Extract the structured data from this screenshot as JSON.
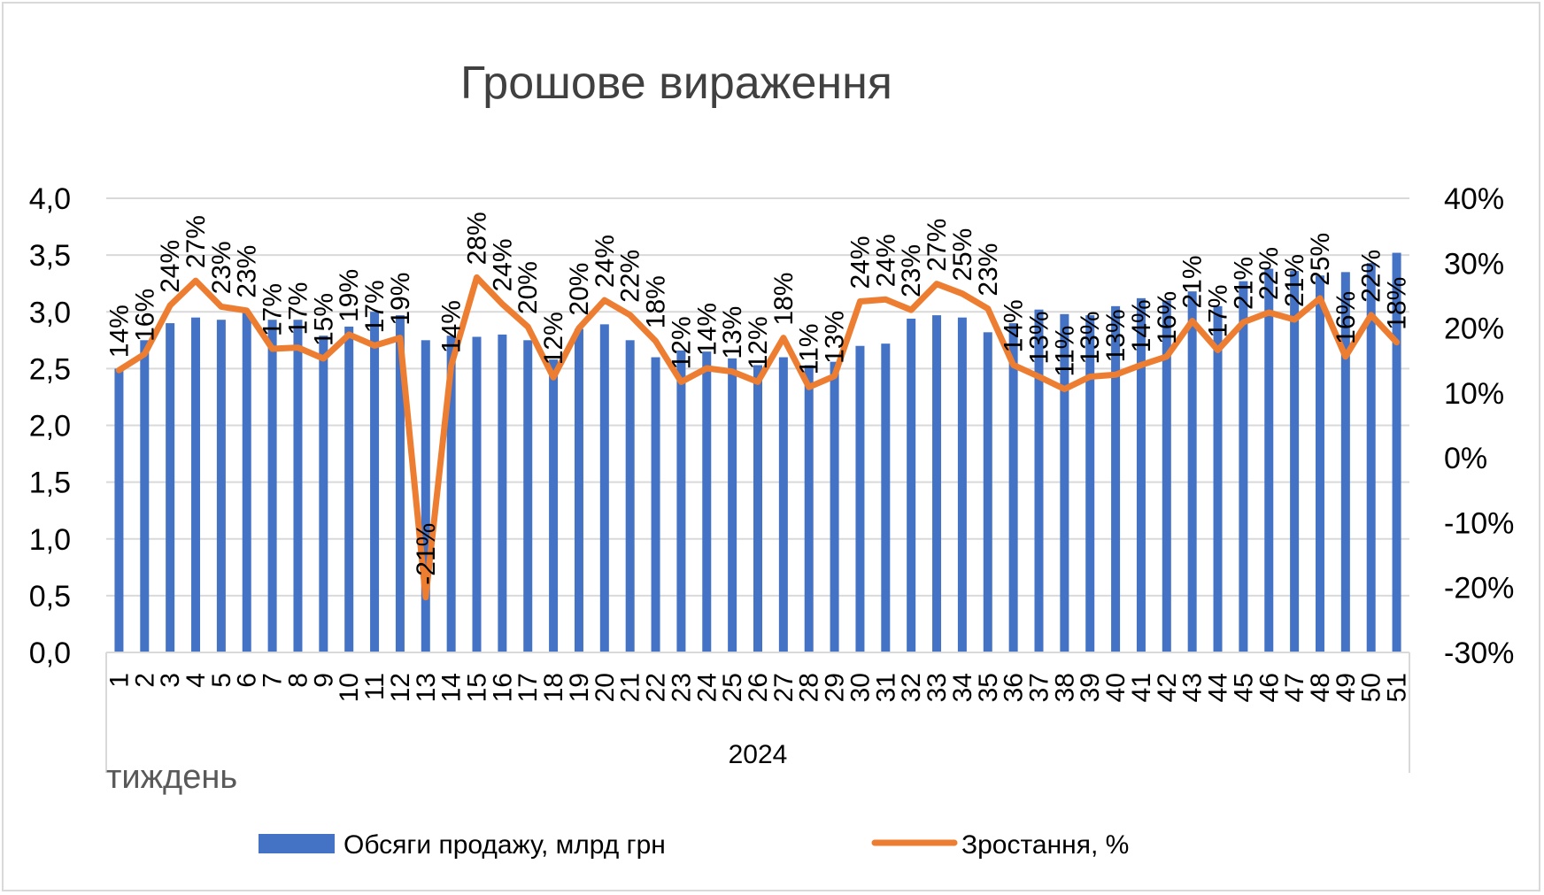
{
  "chart_data": {
    "type": "bar",
    "title": "Грошове вираження",
    "xlabel": "тиждень",
    "group_label": "2024",
    "ylim": [
      0,
      4
    ],
    "y2lim": [
      -30,
      40
    ],
    "y_ticks": [
      "0,0",
      "0,5",
      "1,0",
      "1,5",
      "2,0",
      "2,5",
      "3,0",
      "3,5",
      "4,0"
    ],
    "y2_ticks": [
      "-30%",
      "-20%",
      "-10%",
      "0%",
      "10%",
      "20%",
      "30%",
      "40%"
    ],
    "grid": true,
    "legend_position": "bottom",
    "categories": [
      "1",
      "2",
      "3",
      "4",
      "5",
      "6",
      "7",
      "8",
      "9",
      "10",
      "11",
      "12",
      "13",
      "14",
      "15",
      "16",
      "17",
      "18",
      "19",
      "20",
      "21",
      "22",
      "23",
      "24",
      "25",
      "26",
      "27",
      "28",
      "29",
      "30",
      "31",
      "32",
      "33",
      "34",
      "35",
      "36",
      "37",
      "38",
      "39",
      "40",
      "41",
      "42",
      "43",
      "44",
      "45",
      "46",
      "47",
      "48",
      "49",
      "50",
      "51"
    ],
    "series": [
      {
        "name": "Обсяги продажу, млрд грн",
        "type": "bar",
        "axis": "left",
        "color": "#4472c4",
        "values": [
          2.5,
          2.75,
          2.9,
          2.95,
          2.93,
          3.0,
          2.93,
          2.93,
          2.79,
          2.87,
          3.0,
          2.97,
          2.75,
          2.79,
          2.78,
          2.8,
          2.75,
          2.58,
          2.85,
          2.89,
          2.75,
          2.6,
          2.66,
          2.65,
          2.59,
          2.53,
          2.6,
          2.53,
          2.56,
          2.7,
          2.72,
          2.94,
          2.97,
          2.95,
          2.82,
          2.9,
          3.02,
          2.98,
          2.97,
          3.05,
          3.12,
          3.1,
          3.18,
          3.05,
          3.27,
          3.38,
          3.36,
          3.32,
          3.35,
          3.43,
          3.52
        ]
      },
      {
        "name": "Зростання, %",
        "type": "line",
        "axis": "right",
        "color": "#ed7d31",
        "values": [
          13.5,
          16,
          23.5,
          27.3,
          23.3,
          22.7,
          16.8,
          17.0,
          15.3,
          19.0,
          17.3,
          18.5,
          -21.5,
          14.2,
          27.8,
          23.7,
          20.2,
          12.4,
          20.0,
          24.3,
          22.0,
          18.0,
          11.7,
          13.8,
          13.3,
          11.7,
          18.5,
          10.9,
          12.6,
          24.1,
          24.4,
          22.8,
          26.8,
          25.3,
          23.0,
          14.3,
          12.5,
          10.6,
          12.5,
          12.8,
          14.3,
          15.6,
          21.1,
          16.6,
          20.9,
          22.4,
          21.3,
          24.6,
          15.6,
          22.0,
          17.8
        ]
      }
    ],
    "data_labels": [
      "14%",
      "16%",
      "24%",
      "27%",
      "23%",
      "23%",
      "17%",
      "17%",
      "15%",
      "19%",
      "17%",
      "19%",
      "-21%",
      "14%",
      "28%",
      "24%",
      "20%",
      "12%",
      "20%",
      "24%",
      "22%",
      "18%",
      "12%",
      "14%",
      "13%",
      "12%",
      "18%",
      "11%",
      "13%",
      "24%",
      "24%",
      "23%",
      "27%",
      "25%",
      "23%",
      "14%",
      "13%",
      "11%",
      "13%",
      "13%",
      "14%",
      "16%",
      "21%",
      "17%",
      "21%",
      "22%",
      "21%",
      "25%",
      "16%",
      "22%",
      "18%"
    ]
  }
}
